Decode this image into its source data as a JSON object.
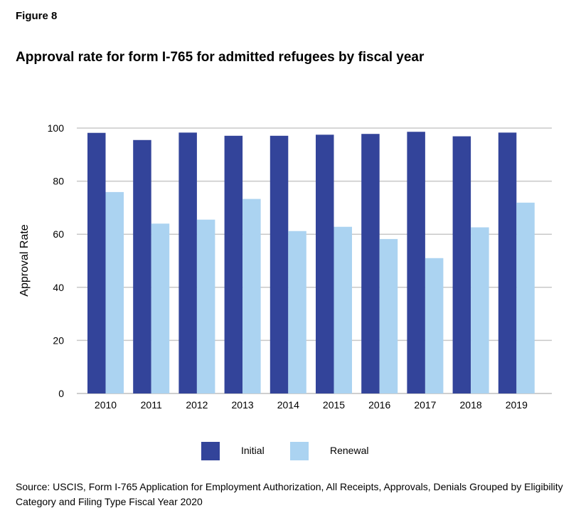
{
  "figure_label": "Figure 8",
  "chart_data": {
    "type": "bar",
    "title": "Approval rate for form I-765 for admitted refugees by fiscal year",
    "xlabel": "",
    "ylabel": "Approval Rate",
    "ylim": [
      0,
      100
    ],
    "yticks": [
      0,
      20,
      40,
      60,
      80,
      100
    ],
    "grid": true,
    "legend_position": "bottom",
    "categories": [
      "2010",
      "2011",
      "2012",
      "2013",
      "2014",
      "2015",
      "2016",
      "2017",
      "2018",
      "2019"
    ],
    "series": [
      {
        "name": "Initial",
        "color": "#33449a",
        "values": [
          98.2,
          95.5,
          98.3,
          97.1,
          97.1,
          97.5,
          97.8,
          98.6,
          96.9,
          98.3
        ]
      },
      {
        "name": "Renewal",
        "color": "#abd3f1",
        "values": [
          75.9,
          64.0,
          65.5,
          73.3,
          61.2,
          62.8,
          58.2,
          51.0,
          62.6,
          71.9
        ]
      }
    ]
  },
  "source": "Source: USCIS, Form I-765 Application for Employment Authorization, All Receipts, Approvals, Denials Grouped by Eligibility Category and Filing Type Fiscal Year 2020"
}
